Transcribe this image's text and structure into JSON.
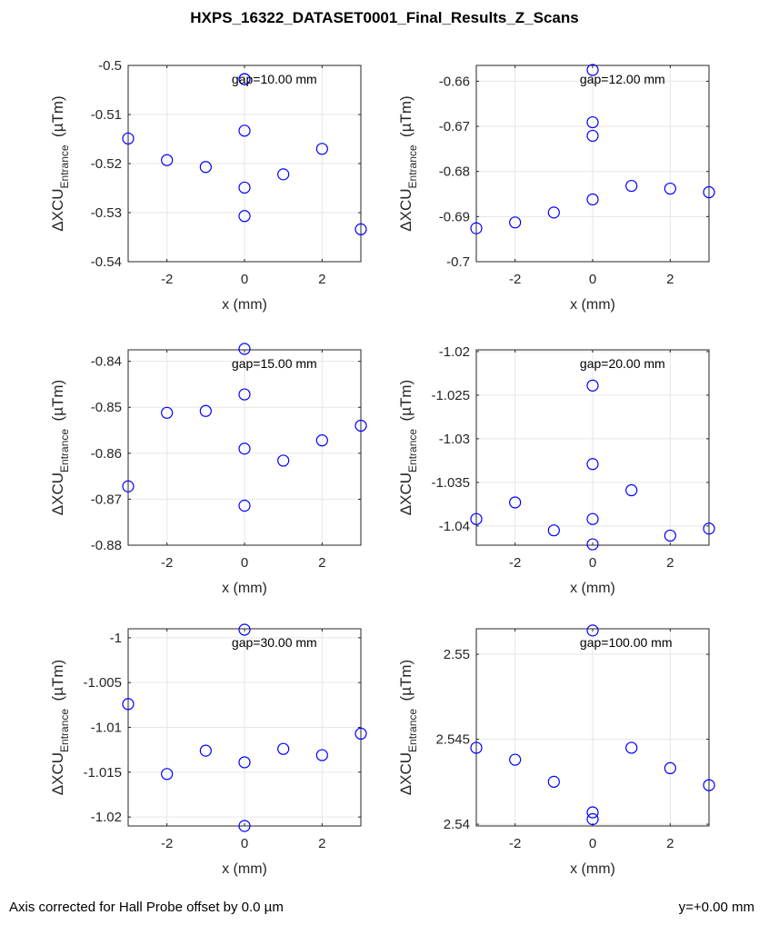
{
  "figure": {
    "title": "HXPS_16322_DATASET0001_Final_Results_Z_Scans",
    "footer_left": "Axis corrected for Hall Probe offset by 0.0 µm",
    "footer_right": "y=+0.00 mm"
  },
  "colors": {
    "marker": "#0000ff",
    "axis": "#262626",
    "grid": "#e6e6e6",
    "background": "#ffffff"
  },
  "chart_data": [
    {
      "type": "scatter",
      "annotation": "gap=10.00 mm",
      "xlabel": "x (mm)",
      "ylabel_main": "ΔXCU",
      "ylabel_sub": "Entrance",
      "ylabel_unit": "(µTm)",
      "xlim": [
        -3,
        3
      ],
      "ylim": [
        -0.54,
        -0.5
      ],
      "xticks": [
        -2,
        0,
        2
      ],
      "xtick_labels": [
        "-2",
        "0",
        "2"
      ],
      "yticks": [
        -0.54,
        -0.53,
        -0.52,
        -0.51,
        -0.5
      ],
      "ytick_labels": [
        "-0.54",
        "-0.53",
        "-0.52",
        "-0.51",
        "-0.5"
      ],
      "grid": true,
      "x": [
        -3,
        -2,
        -1,
        0,
        0,
        0,
        0,
        0,
        1,
        2,
        3
      ],
      "y": [
        -0.5149,
        -0.5193,
        -0.5207,
        -0.5028,
        -0.5133,
        -0.5249,
        -0.5307,
        -0.5028,
        -0.5222,
        -0.517,
        -0.5334
      ]
    },
    {
      "type": "scatter",
      "annotation": "gap=12.00 mm",
      "xlabel": "x (mm)",
      "ylabel_main": "ΔXCU",
      "ylabel_sub": "Entrance",
      "ylabel_unit": "(µTm)",
      "xlim": [
        -3,
        3
      ],
      "ylim": [
        -0.7,
        -0.6565
      ],
      "xticks": [
        -2,
        0,
        2
      ],
      "xtick_labels": [
        "-2",
        "0",
        "2"
      ],
      "yticks": [
        -0.7,
        -0.69,
        -0.68,
        -0.67,
        -0.66
      ],
      "ytick_labels": [
        "-0.7",
        "-0.69",
        "-0.68",
        "-0.67",
        "-0.66"
      ],
      "grid": true,
      "x": [
        -3,
        -2,
        -1,
        0,
        0,
        0,
        0,
        1,
        2,
        3
      ],
      "y": [
        -0.6926,
        -0.6913,
        -0.6891,
        -0.6575,
        -0.6691,
        -0.6721,
        -0.6862,
        -0.6832,
        -0.6838,
        -0.6846
      ]
    },
    {
      "type": "scatter",
      "annotation": "gap=15.00 mm",
      "xlabel": "x (mm)",
      "ylabel_main": "ΔXCU",
      "ylabel_sub": "Entrance",
      "ylabel_unit": "(µTm)",
      "xlim": [
        -3,
        3
      ],
      "ylim": [
        -0.88,
        -0.8375
      ],
      "xticks": [
        -2,
        0,
        2
      ],
      "xtick_labels": [
        "-2",
        "0",
        "2"
      ],
      "yticks": [
        -0.88,
        -0.87,
        -0.86,
        -0.85,
        -0.84
      ],
      "ytick_labels": [
        "-0.88",
        "-0.87",
        "-0.86",
        "-0.85",
        "-0.84"
      ],
      "grid": true,
      "x": [
        -3,
        -2,
        -1,
        0,
        0,
        0,
        0,
        1,
        2,
        3
      ],
      "y": [
        -0.8672,
        -0.8512,
        -0.8508,
        -0.8373,
        -0.8472,
        -0.859,
        -0.8714,
        -0.8616,
        -0.8572,
        -0.854
      ]
    },
    {
      "type": "scatter",
      "annotation": "gap=20.00 mm",
      "xlabel": "x (mm)",
      "ylabel_main": "ΔXCU",
      "ylabel_sub": "Entrance",
      "ylabel_unit": "(µTm)",
      "xlim": [
        -3,
        3
      ],
      "ylim": [
        -1.0422,
        -1.0198
      ],
      "xticks": [
        -2,
        0,
        2
      ],
      "xtick_labels": [
        "-2",
        "0",
        "2"
      ],
      "yticks": [
        -1.04,
        -1.035,
        -1.03,
        -1.025,
        -1.02
      ],
      "ytick_labels": [
        "-1.04",
        "-1.035",
        "-1.03",
        "-1.025",
        "-1.02"
      ],
      "grid": true,
      "x": [
        -3,
        -2,
        -1,
        0,
        0,
        0,
        0,
        1,
        2,
        3
      ],
      "y": [
        -1.0392,
        -1.0373,
        -1.0405,
        -1.0239,
        -1.0329,
        -1.0392,
        -1.0421,
        -1.0359,
        -1.0411,
        -1.0403
      ]
    },
    {
      "type": "scatter",
      "annotation": "gap=30.00 mm",
      "xlabel": "x (mm)",
      "ylabel_main": "ΔXCU",
      "ylabel_sub": "Entrance",
      "ylabel_unit": "(µTm)",
      "xlim": [
        -3,
        3
      ],
      "ylim": [
        -1.021,
        -0.999
      ],
      "xticks": [
        -2,
        0,
        2
      ],
      "xtick_labels": [
        "-2",
        "0",
        "2"
      ],
      "yticks": [
        -1.02,
        -1.015,
        -1.01,
        -1.005,
        -1
      ],
      "ytick_labels": [
        "-1.02",
        "-1.015",
        "-1.01",
        "-1.005",
        "-1"
      ],
      "grid": true,
      "x": [
        -3,
        -2,
        -1,
        0,
        0,
        0,
        1,
        2,
        3
      ],
      "y": [
        -1.0074,
        -1.0152,
        -1.0126,
        -0.9991,
        -1.0139,
        -1.021,
        -1.0124,
        -1.0131,
        -1.0107
      ]
    },
    {
      "type": "scatter",
      "annotation": "gap=100.00 mm",
      "xlabel": "x (mm)",
      "ylabel_main": "ΔXCU",
      "ylabel_sub": "Entrance",
      "ylabel_unit": "(µTm)",
      "xlim": [
        -3,
        3
      ],
      "ylim": [
        2.5399,
        2.5515
      ],
      "xticks": [
        -2,
        0,
        2
      ],
      "xtick_labels": [
        "-2",
        "0",
        "2"
      ],
      "yticks": [
        2.54,
        2.545,
        2.55
      ],
      "ytick_labels": [
        "2.54",
        "2.545",
        "2.55"
      ],
      "grid": true,
      "x": [
        -3,
        -2,
        -1,
        0,
        0,
        0,
        1,
        2,
        3
      ],
      "y": [
        2.5445,
        2.5438,
        2.5425,
        2.5514,
        2.5407,
        2.5403,
        2.5445,
        2.5433,
        2.5423
      ]
    }
  ]
}
